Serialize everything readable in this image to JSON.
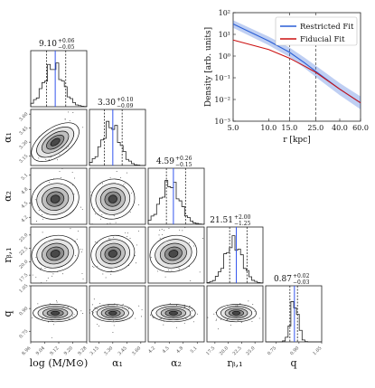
{
  "chart_data": [
    {
      "type": "corner",
      "parameters": [
        {
          "id": "logM",
          "ylabel": "",
          "xlabel": "log $(M/M_\\odot)$",
          "xlabel_text": "log (M/M⊙)",
          "title_value": "9.10",
          "title_plus": "+0.06",
          "title_minus": "−0.05",
          "range": [
            8.96,
            9.28
          ],
          "ticks": [
            "8.96",
            "9.04",
            "9.12",
            "9.20",
            "9.28"
          ],
          "median": 9.1,
          "lo": 9.05,
          "hi": 9.16,
          "hist_peak": 9.09
        },
        {
          "id": "alpha1",
          "ylabel": "α₁",
          "xlabel_text": "α₁",
          "title_value": "3.30",
          "title_plus": "+0.10",
          "title_minus": "−0.09",
          "range": [
            3.05,
            3.65
          ],
          "ticks": [
            "3.15",
            "3.30",
            "3.45",
            "3.60"
          ],
          "median": 3.3,
          "lo": 3.21,
          "hi": 3.4,
          "hist_peak": 3.28
        },
        {
          "id": "alpha2",
          "ylabel": "α₂",
          "xlabel_text": "α₂",
          "title_value": "4.59",
          "title_plus": "+0.26",
          "title_minus": "−0.15",
          "range": [
            4.05,
            5.25
          ],
          "ticks": [
            "4.2",
            "4.5",
            "4.8",
            "5.1"
          ],
          "median": 4.59,
          "lo": 4.44,
          "hi": 4.85,
          "hist_peak": 4.52
        },
        {
          "id": "rb1",
          "ylabel": "rᵦ,₁",
          "xlabel_text": "rᵦ,₁",
          "title_value": "21.51",
          "title_plus": "+2.00",
          "title_minus": "−1.25",
          "range": [
            16.0,
            26.5
          ],
          "ticks": [
            "17.5",
            "20.0",
            "22.5",
            "25.0"
          ],
          "median": 21.51,
          "lo": 20.26,
          "hi": 23.51,
          "hist_peak": 21.0
        },
        {
          "id": "q",
          "ylabel": "q",
          "xlabel_text": "q",
          "title_value": "0.87",
          "title_plus": "+0.02",
          "title_minus": "−0.03",
          "range": [
            0.68,
            1.05
          ],
          "ticks": [
            "0.75",
            "0.90",
            "1.05"
          ],
          "median": 0.87,
          "lo": 0.84,
          "hi": 0.89,
          "hist_peak": 0.87
        }
      ]
    },
    {
      "type": "line",
      "xlabel": "r [kpc]",
      "ylabel": "Density [arb. units]",
      "xscale": "log",
      "yscale": "log",
      "xlim": [
        5.0,
        60.0
      ],
      "ylim": [
        0.001,
        100
      ],
      "xticks": [
        5.0,
        10.0,
        15.0,
        25.0,
        40.0,
        60.0
      ],
      "xticklabels": [
        "5.0",
        "10.0",
        "15.0",
        "25.0",
        "40.0",
        "60.0"
      ],
      "yticks": [
        0.001,
        0.01,
        0.1,
        1,
        10,
        100
      ],
      "yticklabels": [
        "10⁻³",
        "10⁻²",
        "10⁻¹",
        "10⁰",
        "10¹",
        "10²"
      ],
      "vlines": [
        15.0,
        25.0
      ],
      "legend_position": "top-right",
      "series": [
        {
          "name": "Restricted Fit",
          "color": "#2a5fd6",
          "band": true,
          "x": [
            5.0,
            10.0,
            15.0,
            20.0,
            25.0,
            40.0,
            60.0
          ],
          "y": [
            30,
            5,
            1.5,
            0.5,
            0.2,
            0.03,
            0.007
          ]
        },
        {
          "name": "Fiducial Fit",
          "color": "#cc1111",
          "band": false,
          "x": [
            5.0,
            10.0,
            15.0,
            20.0,
            25.0,
            40.0,
            60.0
          ],
          "y": [
            5.5,
            2.0,
            0.8,
            0.35,
            0.18,
            0.03,
            0.007
          ]
        }
      ]
    }
  ]
}
